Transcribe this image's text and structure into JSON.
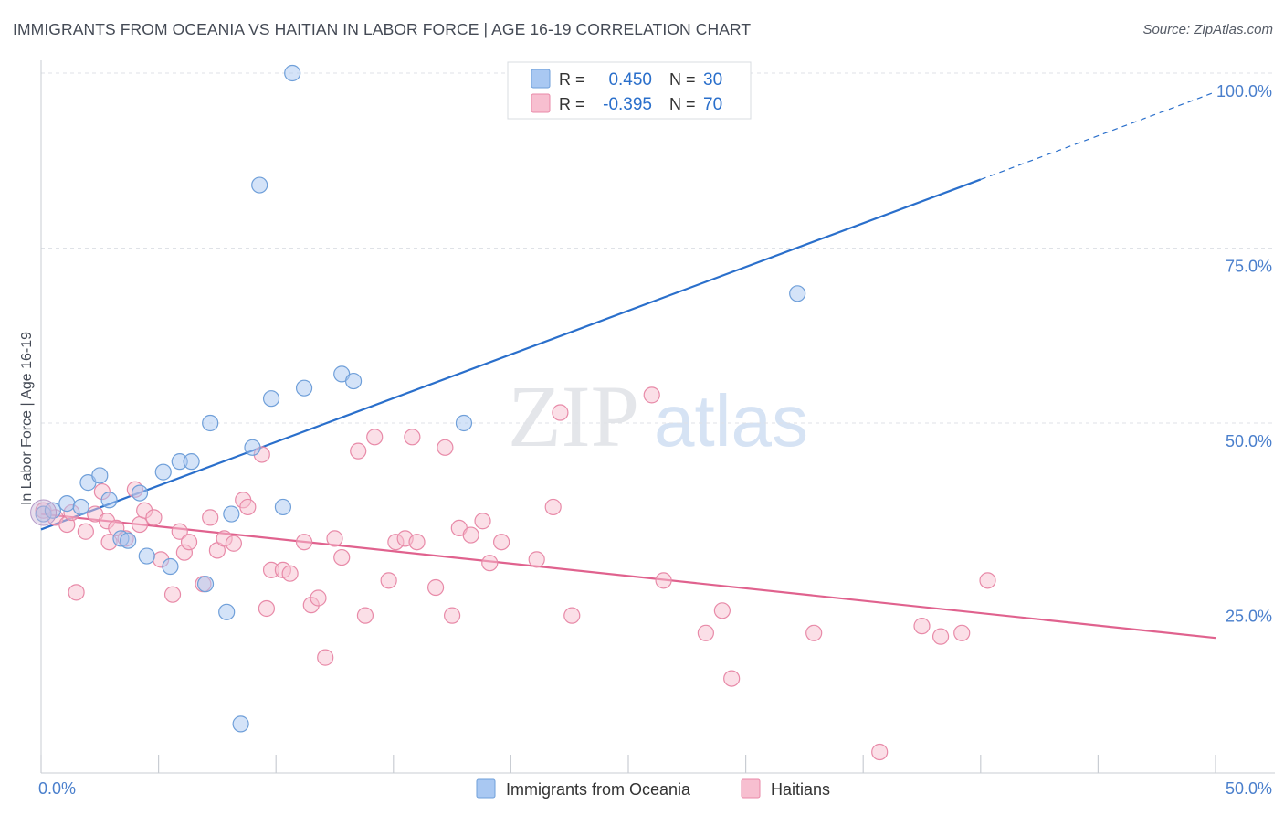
{
  "title": "IMMIGRANTS FROM OCEANIA VS HAITIAN IN LABOR FORCE | AGE 16-19 CORRELATION CHART",
  "source": "Source: ZipAtlas.com",
  "watermark": {
    "zip": "ZIP",
    "atlas": "atlas"
  },
  "legend_box": {
    "rows": [
      {
        "r_label": "R =",
        "r_value": "0.450",
        "n_label": "N =",
        "n_value": "30",
        "color": "#a9c8f2",
        "stroke": "#6f9fd9"
      },
      {
        "r_label": "R =",
        "r_value": "-0.395",
        "n_label": "N =",
        "n_value": "70",
        "color": "#f7bfd0",
        "stroke": "#e88aa8"
      }
    ]
  },
  "chart_data": {
    "type": "scatter",
    "xlabel": "",
    "ylabel": "In Labor Force | Age 16-19",
    "xlim": [
      0,
      50
    ],
    "ylim": [
      0,
      100
    ],
    "x_tick_labels": [
      {
        "value": 0,
        "label": "0.0%"
      },
      {
        "value": 50,
        "label": "50.0%"
      }
    ],
    "y_tick_labels": [
      {
        "value": 25,
        "label": "25.0%"
      },
      {
        "value": 50,
        "label": "50.0%"
      },
      {
        "value": 75,
        "label": "75.0%"
      },
      {
        "value": 100,
        "label": "100.0%"
      }
    ],
    "grid": true,
    "legend_position": "bottom-center",
    "series": [
      {
        "name": "Immigrants from Oceania",
        "color": "#a9c8f2",
        "stroke": "#6f9fd9",
        "line_color": "#2a6fcb",
        "trend": {
          "x0": 0,
          "y0": 34.8,
          "x1": 40,
          "y1": 84.8,
          "dash_to_x": 50,
          "dash_to_y": 97.3
        },
        "points": [
          [
            0.1,
            37.0
          ],
          [
            0.5,
            37.5
          ],
          [
            1.1,
            38.5
          ],
          [
            1.7,
            38.0
          ],
          [
            2.0,
            41.5
          ],
          [
            2.5,
            42.5
          ],
          [
            2.9,
            39.0
          ],
          [
            3.4,
            33.5
          ],
          [
            3.7,
            33.2
          ],
          [
            4.2,
            40.0
          ],
          [
            4.5,
            31.0
          ],
          [
            5.2,
            43.0
          ],
          [
            5.5,
            29.5
          ],
          [
            5.9,
            44.5
          ],
          [
            6.4,
            44.5
          ],
          [
            7.0,
            27.0
          ],
          [
            7.2,
            50.0
          ],
          [
            7.9,
            23.0
          ],
          [
            8.1,
            37.0
          ],
          [
            8.5,
            7.0
          ],
          [
            9.0,
            46.5
          ],
          [
            9.3,
            84.0
          ],
          [
            9.8,
            53.5
          ],
          [
            10.3,
            38.0
          ],
          [
            10.7,
            100.0
          ],
          [
            11.2,
            55.0
          ],
          [
            12.8,
            57.0
          ],
          [
            13.3,
            56.0
          ],
          [
            18.0,
            50.0
          ],
          [
            32.2,
            68.5
          ]
        ]
      },
      {
        "name": "Haitians",
        "color": "#f7bfd0",
        "stroke": "#e88aa8",
        "line_color": "#e0628e",
        "trend": {
          "x0": 0,
          "y0": 37.0,
          "x1": 50,
          "y1": 19.3
        },
        "points": [
          [
            0.1,
            37.5
          ],
          [
            0.6,
            36.5
          ],
          [
            1.1,
            35.5
          ],
          [
            1.5,
            25.8
          ],
          [
            1.9,
            34.5
          ],
          [
            2.3,
            37.0
          ],
          [
            2.6,
            40.2
          ],
          [
            2.8,
            36.0
          ],
          [
            2.9,
            33.0
          ],
          [
            3.2,
            35.0
          ],
          [
            3.6,
            33.5
          ],
          [
            4.0,
            40.5
          ],
          [
            4.2,
            35.5
          ],
          [
            4.4,
            37.5
          ],
          [
            4.8,
            36.5
          ],
          [
            5.1,
            30.5
          ],
          [
            5.6,
            25.5
          ],
          [
            5.9,
            34.5
          ],
          [
            6.1,
            31.5
          ],
          [
            6.3,
            33.0
          ],
          [
            6.9,
            27.0
          ],
          [
            7.2,
            36.5
          ],
          [
            7.5,
            31.8
          ],
          [
            7.8,
            33.5
          ],
          [
            8.2,
            32.8
          ],
          [
            8.6,
            39.0
          ],
          [
            8.8,
            38.0
          ],
          [
            9.4,
            45.5
          ],
          [
            9.6,
            23.5
          ],
          [
            9.8,
            29.0
          ],
          [
            10.3,
            29.0
          ],
          [
            10.6,
            28.5
          ],
          [
            11.2,
            33.0
          ],
          [
            11.5,
            24.0
          ],
          [
            11.8,
            25.0
          ],
          [
            12.1,
            16.5
          ],
          [
            12.5,
            33.5
          ],
          [
            12.8,
            30.8
          ],
          [
            13.5,
            46.0
          ],
          [
            13.8,
            22.5
          ],
          [
            14.2,
            48.0
          ],
          [
            14.8,
            27.5
          ],
          [
            15.1,
            33.0
          ],
          [
            15.5,
            33.5
          ],
          [
            15.8,
            48.0
          ],
          [
            16.0,
            33.0
          ],
          [
            16.8,
            26.5
          ],
          [
            17.2,
            46.5
          ],
          [
            17.5,
            22.5
          ],
          [
            17.8,
            35.0
          ],
          [
            18.3,
            34.0
          ],
          [
            18.8,
            36.0
          ],
          [
            19.1,
            30.0
          ],
          [
            19.6,
            33.0
          ],
          [
            21.1,
            30.5
          ],
          [
            21.8,
            38.0
          ],
          [
            22.1,
            51.5
          ],
          [
            22.6,
            22.5
          ],
          [
            26.0,
            54.0
          ],
          [
            26.5,
            27.5
          ],
          [
            28.3,
            20.0
          ],
          [
            29.0,
            23.2
          ],
          [
            29.4,
            13.5
          ],
          [
            32.9,
            20.0
          ],
          [
            35.7,
            3.0
          ],
          [
            37.5,
            21.0
          ],
          [
            38.3,
            19.5
          ],
          [
            39.2,
            20.0
          ],
          [
            40.3,
            27.5
          ],
          [
            1.3,
            37.2
          ]
        ]
      }
    ]
  }
}
